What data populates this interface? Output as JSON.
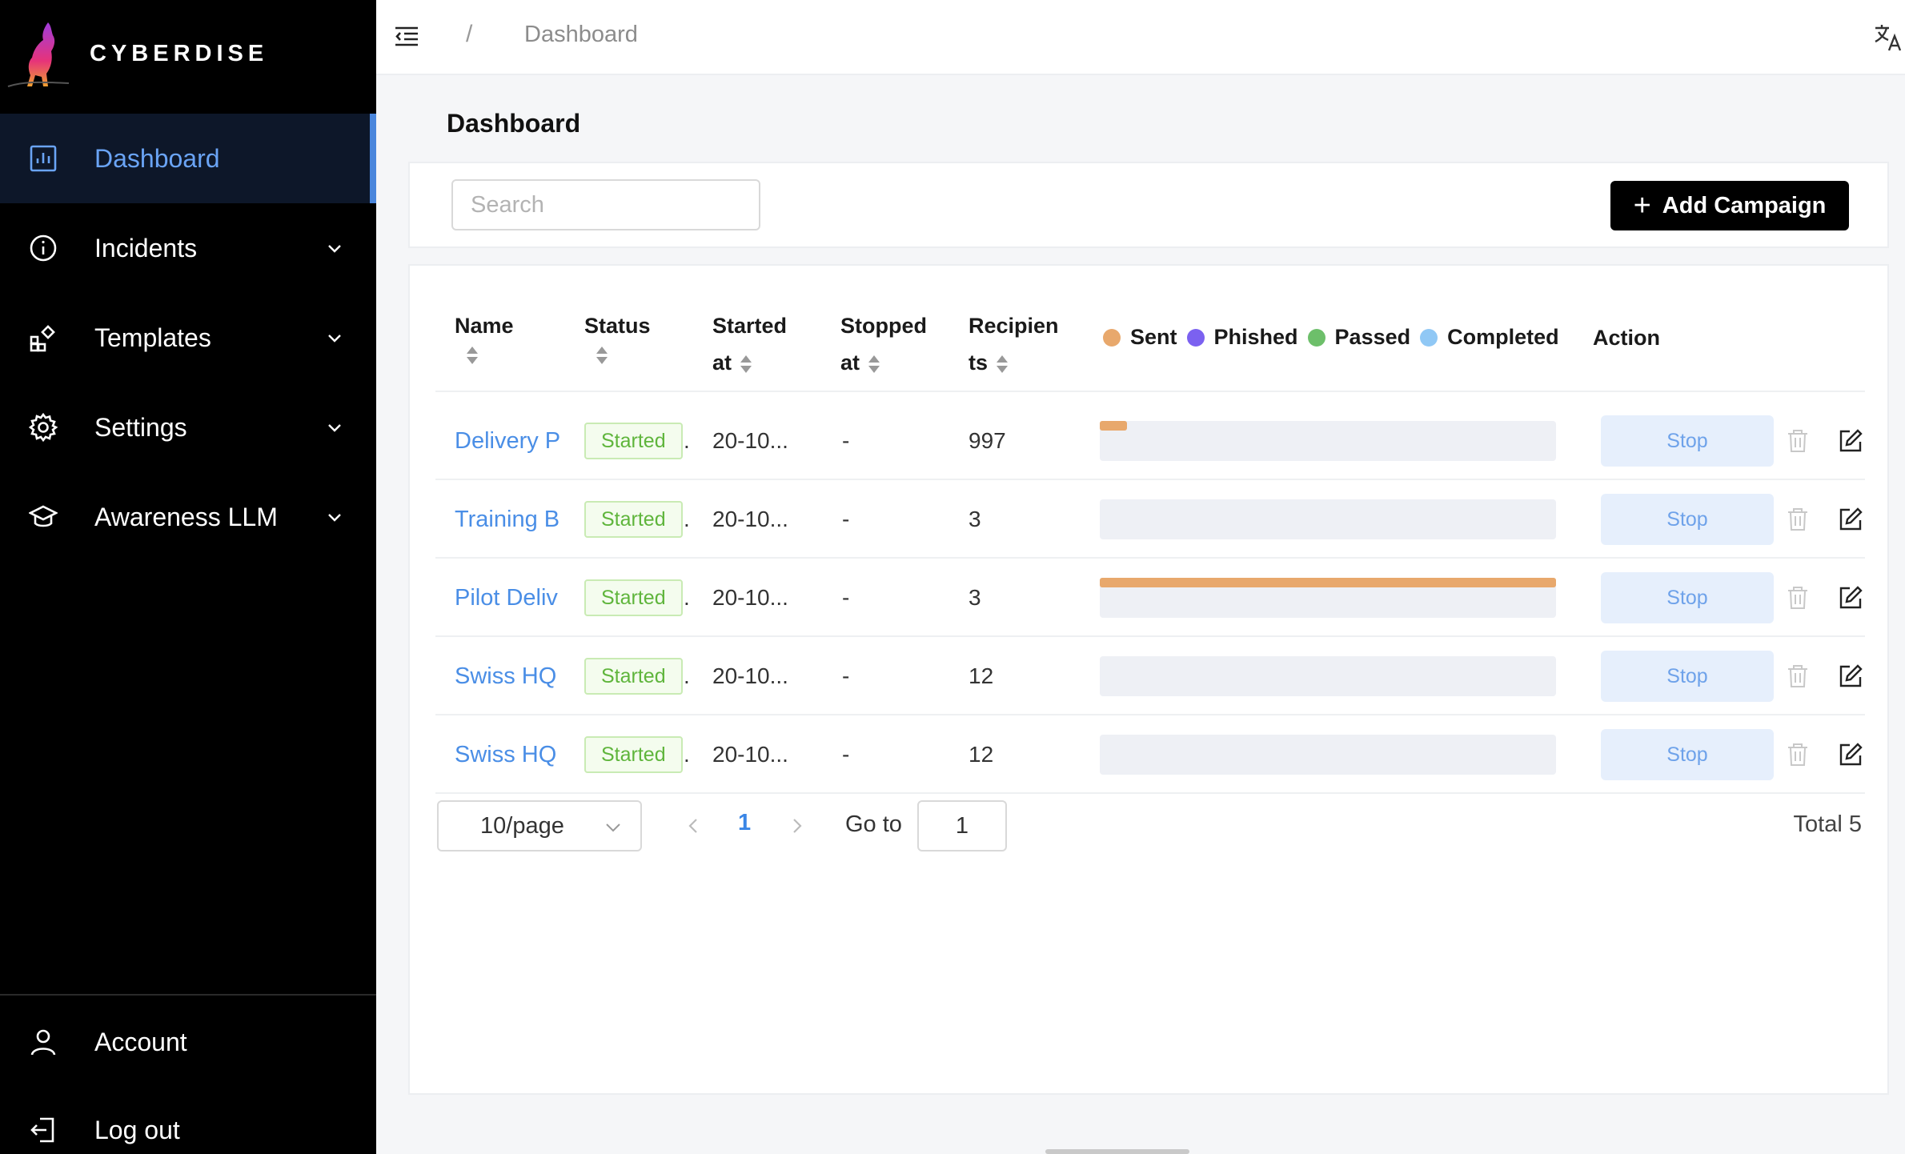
{
  "brand": {
    "name": "CYBERDISE"
  },
  "sidebar": {
    "items": [
      {
        "label": "Dashboard",
        "icon": "bar-chart-icon",
        "active": true,
        "expandable": false
      },
      {
        "label": "Incidents",
        "icon": "info-circle-icon",
        "expandable": true
      },
      {
        "label": "Templates",
        "icon": "blocks-icon",
        "expandable": true
      },
      {
        "label": "Settings",
        "icon": "gear-icon",
        "expandable": true
      },
      {
        "label": "Awareness LLM",
        "icon": "graduation-cap-icon",
        "expandable": true
      }
    ],
    "bottom": [
      {
        "label": "Account",
        "icon": "user-icon"
      },
      {
        "label": "Log out",
        "icon": "logout-icon"
      }
    ]
  },
  "header": {
    "breadcrumb_sep": "/",
    "breadcrumb": "Dashboard"
  },
  "page": {
    "title": "Dashboard"
  },
  "toolbar": {
    "search_placeholder": "Search",
    "add_label": "Add Campaign"
  },
  "table": {
    "columns": {
      "name": "Name",
      "status": "Status",
      "started_1": "Started",
      "started_2": "at",
      "stopped_1": "Stopped",
      "stopped_2": "at",
      "recipients_1": "Recipien",
      "recipients_2": "ts",
      "action": "Action"
    },
    "legend": [
      {
        "label": "Sent",
        "color": "#e8a86c"
      },
      {
        "label": "Phished",
        "color": "#7b61f0"
      },
      {
        "label": "Passed",
        "color": "#6dbf6a"
      },
      {
        "label": "Completed",
        "color": "#90c8f5"
      }
    ],
    "rows": [
      {
        "name": "Delivery P",
        "status": "Started",
        "started": "20-10...",
        "stopped": "-",
        "recipients": "997",
        "sent_fraction": 0.06,
        "action": "Stop"
      },
      {
        "name": "Training B",
        "status": "Started",
        "started": "20-10...",
        "stopped": "-",
        "recipients": "3",
        "sent_fraction": 0,
        "action": "Stop"
      },
      {
        "name": "Pilot Deliv",
        "status": "Started",
        "started": "20-10...",
        "stopped": "-",
        "recipients": "3",
        "sent_fraction": 1.0,
        "action": "Stop"
      },
      {
        "name": "Swiss HQ",
        "status": "Started",
        "started": "20-10...",
        "stopped": "-",
        "recipients": "12",
        "sent_fraction": 0,
        "action": "Stop"
      },
      {
        "name": "Swiss HQ",
        "status": "Started",
        "started": "20-10...",
        "stopped": "-",
        "recipients": "12",
        "sent_fraction": 0,
        "action": "Stop"
      }
    ]
  },
  "pagination": {
    "page_size": "10/page",
    "current": "1",
    "goto_label": "Go to",
    "goto_value": "1",
    "total": "Total 5"
  }
}
